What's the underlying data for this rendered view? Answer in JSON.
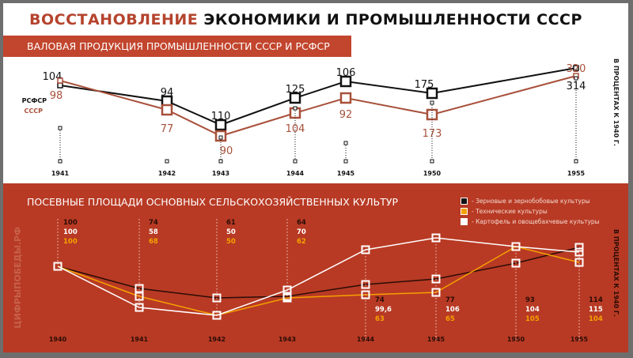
{
  "title": {
    "part1": "ВОССТАНОВЛЕНИЕ",
    "part2": "ЭКОНОМИКИ И ПРОМЫШЛЕННОСТИ СССР"
  },
  "watermark": "ЦИФРЫПОБЕДЫ.РФ",
  "chart_data": [
    {
      "type": "line",
      "title": "ВАЛОВАЯ ПРОДУКЦИЯ ПРОМЫШЛЕННОСТИ СССР И РСФСР",
      "ylabel": "В ПРОЦЕНТАХ К 1940 Г.",
      "categories": [
        "1941",
        "1942",
        "1943",
        "1944",
        "1945",
        "1950",
        "1955"
      ],
      "series": [
        {
          "name": "РСФСР",
          "color": "#111111",
          "values": [
            104,
            94,
            110,
            125,
            106,
            175,
            314
          ]
        },
        {
          "name": "СССР",
          "color": "#a8503a",
          "values": [
            98,
            77,
            90,
            104,
            92,
            173,
            320
          ]
        }
      ]
    },
    {
      "type": "line",
      "title": "ПОСЕВНЫЕ ПЛОЩАДИ ОСНОВНЫХ СЕЛЬСКОХОЗЯЙСТВЕННЫХ КУЛЬТУР",
      "ylabel": "В ПРОЦЕНТАХ К 1940 Г.",
      "legend": "top-right",
      "categories": [
        "1940",
        "1941",
        "1942",
        "1943",
        "1944",
        "1945",
        "1950",
        "1955"
      ],
      "series": [
        {
          "name": "- Зерновые и зернобобовые культуры",
          "color": "#2a0c06",
          "values": [
            100,
            74,
            61,
            64,
            74,
            77,
            93,
            114
          ],
          "labels": [
            "100",
            "74",
            "61",
            "64",
            "74",
            "77",
            "93",
            "114"
          ]
        },
        {
          "name": "- Технические культуры",
          "color": "#f5a100",
          "values": [
            100,
            68,
            50,
            62,
            63,
            65,
            105,
            104
          ],
          "labels": [
            "100",
            "68",
            "50",
            "62",
            "63",
            "65",
            "105",
            "104"
          ]
        },
        {
          "name": "- Картофель и овощебахчевые культуры",
          "color": "#ffffff",
          "values": [
            100,
            58,
            50,
            70,
            99.6,
            106,
            104,
            115
          ],
          "labels": [
            "100",
            "58",
            "50",
            "70",
            "99,6",
            "106",
            "104",
            "115"
          ]
        }
      ]
    }
  ]
}
